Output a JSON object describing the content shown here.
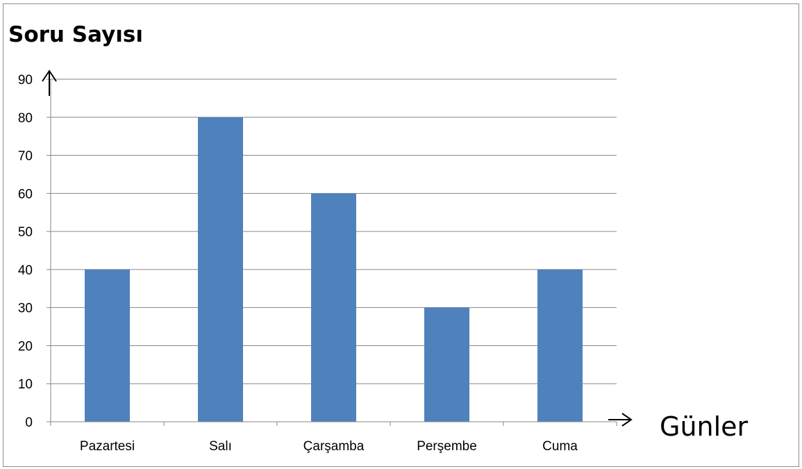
{
  "chart_data": {
    "type": "bar",
    "ylabel": "Soru Sayısı",
    "xlabel": "Günler",
    "categories": [
      "Pazartesi",
      "Salı",
      "Çarşamba",
      "Perşembe",
      "Cuma"
    ],
    "values": [
      40,
      80,
      60,
      30,
      40
    ],
    "ylim": [
      0,
      90
    ],
    "yticks": [
      0,
      10,
      20,
      30,
      40,
      50,
      60,
      70,
      80,
      90
    ],
    "grid": true,
    "bar_color": "#4f81bd",
    "grid_color": "#868686"
  }
}
